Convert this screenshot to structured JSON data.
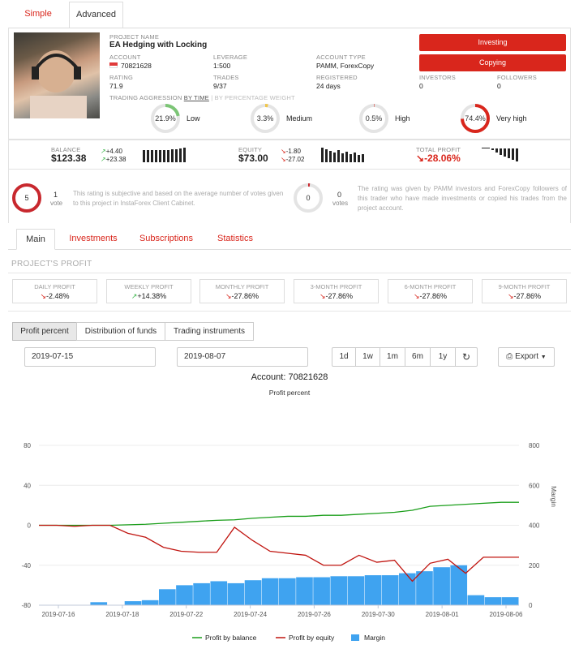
{
  "top_tabs": {
    "simple": "Simple",
    "advanced": "Advanced"
  },
  "project": {
    "name_label": "PROJECT NAME",
    "name": "EA Hedging with Locking",
    "account_label": "ACCOUNT",
    "account": "70821628",
    "leverage_label": "LEVERAGE",
    "leverage": "1:500",
    "account_type_label": "ACCOUNT TYPE",
    "account_type": "PAMM, ForexCopy",
    "rating_label": "RATING",
    "rating": "71.9",
    "trades_label": "TRADES",
    "trades": "9/37",
    "registered_label": "REGISTERED",
    "registered": "24 days",
    "investors_label": "INVESTORS",
    "investors": "0",
    "followers_label": "FOLLOWERS",
    "followers": "0"
  },
  "actions": {
    "investing": "Investing",
    "copying": "Copying"
  },
  "aggression": {
    "title_a": "TRADING AGGRESSION",
    "title_b": "BY TIME",
    "title_c": "| BY PERCENTAGE WEIGHT",
    "items": [
      {
        "value": "21.9%",
        "label": "Low",
        "fraction": 0.219,
        "color": "#7cc576"
      },
      {
        "value": "3.3%",
        "label": "Medium",
        "fraction": 0.033,
        "color": "#f0c64a"
      },
      {
        "value": "0.5%",
        "label": "High",
        "fraction": 0.005,
        "color": "#d9261c"
      },
      {
        "value": "74.4%",
        "label": "Very high",
        "fraction": 0.744,
        "color": "#d9261c"
      }
    ]
  },
  "stats": {
    "balance_label": "BALANCE",
    "balance": "$123.38",
    "balance_up1": "+4.40",
    "balance_up2": "+23.38",
    "equity_label": "EQUITY",
    "equity": "$73.00",
    "equity_d1": "-1.80",
    "equity_d2": "-27.02",
    "total_label": "TOTAL PROFIT",
    "total": "-28.06%"
  },
  "rating_block": {
    "votes_a": "5",
    "votes_a_count": "1",
    "votes_a_unit": "vote",
    "text_a": "This rating is subjective and based on the average number of votes given to this project in InstaForex Client Cabinet.",
    "votes_b": "0",
    "votes_b_count": "0",
    "votes_b_unit": "votes",
    "text_b": "The rating was given by PAMM investors and ForexCopy followers of this trader who have made investments or copied his trades from the project account."
  },
  "main_tabs": [
    "Main",
    "Investments",
    "Subscriptions",
    "Statistics"
  ],
  "profit_section": {
    "title": "PROJECT'S PROFIT",
    "metrics": [
      {
        "label": "DAILY PROFIT",
        "value": "-2.48%",
        "dir": "down"
      },
      {
        "label": "WEEKLY PROFIT",
        "value": "+14.38%",
        "dir": "up"
      },
      {
        "label": "MONTHLY PROFIT",
        "value": "-27.86%",
        "dir": "down"
      },
      {
        "label": "3-MONTH PROFIT",
        "value": "-27.86%",
        "dir": "down"
      },
      {
        "label": "6-MONTH PROFIT",
        "value": "-27.86%",
        "dir": "down"
      },
      {
        "label": "9-MONTH PROFIT",
        "value": "-27.86%",
        "dir": "down"
      }
    ]
  },
  "chart_tabs": [
    "Profit percent",
    "Distribution of funds",
    "Trading instruments"
  ],
  "date_from": "2019-07-15",
  "date_to": "2019-08-07",
  "ranges": [
    "1d",
    "1w",
    "1m",
    "6m",
    "1y"
  ],
  "export_label": "Export",
  "chart_data": {
    "type": "line",
    "title": "Account: 70821628",
    "subtitle": "Profit percent",
    "ylabel_right": "Margin",
    "ylim": [
      -80,
      80
    ],
    "ylim_right": [
      0,
      800
    ],
    "y_ticks": [
      80,
      40,
      0,
      -40,
      -80
    ],
    "y_ticks_right": [
      800,
      600,
      400,
      200,
      0
    ],
    "x_ticks": [
      "2019-07-16",
      "2019-07-18",
      "2019-07-22",
      "2019-07-24",
      "2019-07-26",
      "2019-07-30",
      "2019-08-01",
      "2019-08-06"
    ],
    "series": [
      {
        "name": "Profit by balance",
        "color": "#1a9e1a",
        "values": [
          0,
          0,
          0,
          0,
          0,
          0.5,
          1,
          2,
          3,
          4,
          5,
          5.5,
          7,
          8,
          9,
          9,
          10,
          10,
          11,
          12,
          13,
          15,
          19,
          20,
          21,
          22,
          23,
          23
        ]
      },
      {
        "name": "Profit by equity",
        "color": "#c0140f",
        "values": [
          0,
          0,
          -1,
          0,
          0,
          -8,
          -12,
          -22,
          -26,
          -27,
          -27,
          -2,
          -15,
          -26,
          -28,
          -30,
          -40,
          -40,
          -30,
          -37,
          -35,
          -56,
          -38,
          -34,
          -48,
          -32,
          -32,
          -32
        ]
      },
      {
        "name": "Margin",
        "color": "#3fa3f0",
        "type": "bar",
        "values": [
          0,
          0,
          0,
          15,
          0,
          20,
          25,
          80,
          100,
          110,
          120,
          110,
          125,
          135,
          135,
          140,
          140,
          145,
          145,
          150,
          150,
          160,
          170,
          190,
          200,
          50,
          40,
          40
        ]
      }
    ]
  }
}
